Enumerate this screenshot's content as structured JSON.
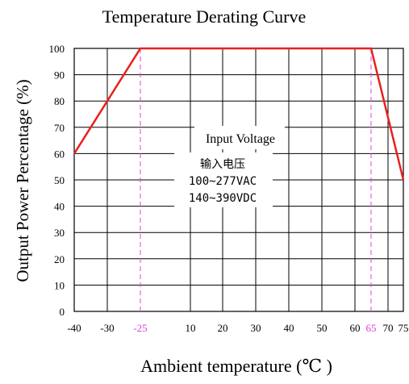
{
  "chart_data": {
    "type": "line",
    "title": "Temperature Derating Curve",
    "xlabel": "Ambient temperature (℃ )",
    "ylabel": "Output Power Percentage (%)",
    "x_ticks": [
      "-40",
      "-30",
      "-25",
      "10",
      "20",
      "30",
      "40",
      "50",
      "60",
      "65",
      "70",
      "75"
    ],
    "highlight_ticks": [
      "-25",
      "65"
    ],
    "y_ticks": [
      "0",
      "10",
      "20",
      "30",
      "40",
      "50",
      "60",
      "70",
      "80",
      "90",
      "100"
    ],
    "ylim": [
      0,
      100
    ],
    "grid": true,
    "series": [
      {
        "x": [
          "-40",
          "-25",
          "65",
          "75"
        ],
        "y": [
          60,
          100,
          100,
          50
        ]
      }
    ],
    "annotation": {
      "line1": "Input Voltage",
      "line2": "输入电压",
      "line3": "100~277VAC",
      "line4": "140~390VDC"
    },
    "colors": {
      "series": "#e8211d",
      "highlight": "#e040d8",
      "grid": "#000000"
    }
  }
}
